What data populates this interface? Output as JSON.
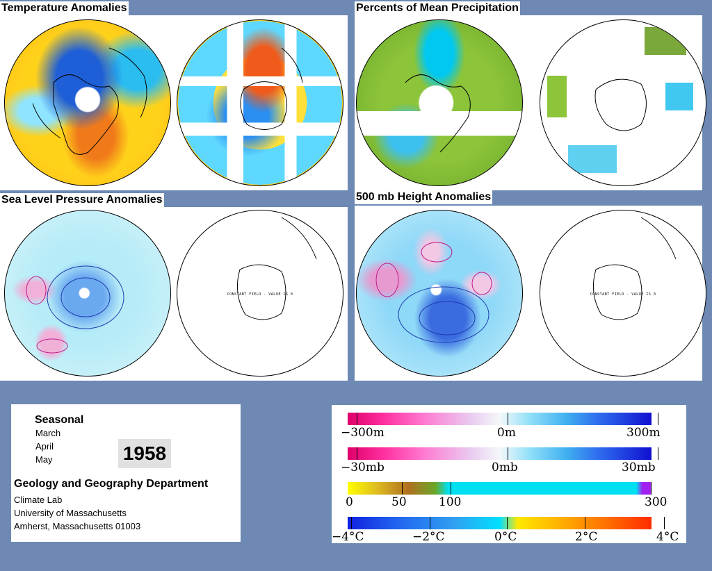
{
  "panels": {
    "temperature": {
      "title": "Temperature Anomalies"
    },
    "precipitation": {
      "title": "Percents of Mean Precipitation"
    },
    "slp": {
      "title": "Sea Level Pressure Anomalies",
      "constant_text": "CONSTANT FIELD - VALUE IS 0"
    },
    "height": {
      "title": "500 mb Height Anomalies",
      "constant_text": "CONSTANT FIELD - VALUE IS 0"
    }
  },
  "info": {
    "season": "Seasonal",
    "months": [
      "March",
      "April",
      "May"
    ],
    "year": "1958",
    "department": "Geology and Geography Department",
    "lines": [
      "Climate Lab",
      "University of Massachusetts",
      "Amherst, Massachusetts 01003"
    ]
  },
  "legend": {
    "height_scale": {
      "labels": [
        "−300m",
        "0m",
        "300m"
      ]
    },
    "pressure_scale": {
      "labels": [
        "−30mb",
        "0mb",
        "30mb"
      ]
    },
    "precip_scale": {
      "labels": [
        "0",
        "50",
        "100",
        "300"
      ]
    },
    "temp_scale": {
      "labels": [
        "−4°C",
        "−2°C",
        "0°C",
        "2°C",
        "4°C"
      ]
    }
  },
  "colors": {
    "background": "#6d89b4",
    "warm": "#ff8c1a",
    "cold": "#2a6fe0",
    "neutral": "#00d8ff"
  }
}
